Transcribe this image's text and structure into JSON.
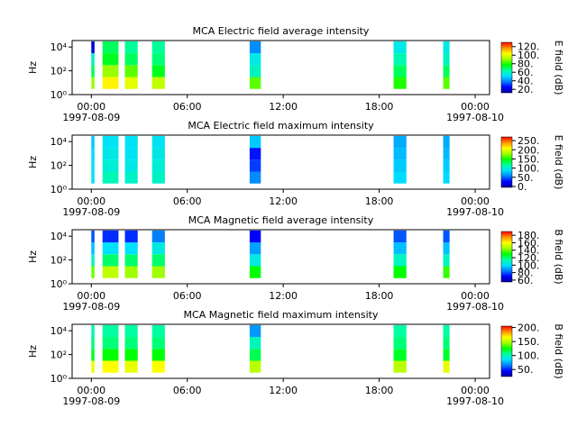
{
  "colormap": [
    "#0000a0",
    "#0000ff",
    "#0080ff",
    "#00e0ff",
    "#00ffa0",
    "#00ff00",
    "#a0ff00",
    "#ffff00",
    "#ff9000",
    "#ff0000"
  ],
  "chart_data": [
    {
      "type": "spectrogram",
      "title": "MCA  Electric field average intensity",
      "ylabel": "Hz",
      "clabel": "E field (dB)",
      "xlim": [
        -1.2,
        24.9
      ],
      "ylim": [
        1,
        35000
      ],
      "log_y": true,
      "xticks": [
        {
          "value": 0,
          "label": "00:00"
        },
        {
          "value": 6,
          "label": "06:00"
        },
        {
          "value": 12,
          "label": "12:00"
        },
        {
          "value": 18,
          "label": "18:00"
        },
        {
          "value": 24,
          "label": "00:00"
        }
      ],
      "date_labels": [
        {
          "value": 0,
          "label": "1997-08-09"
        },
        {
          "value": 24,
          "label": "1997-08-10"
        }
      ],
      "yticks": [
        {
          "value": 1,
          "label": "10⁰"
        },
        {
          "value": 100,
          "label": "10²"
        },
        {
          "value": 10000,
          "label": "10⁴"
        }
      ],
      "clim": [
        12,
        130
      ],
      "cticks": [
        {
          "value": 20,
          "label": "20."
        },
        {
          "value": 40,
          "label": "40."
        },
        {
          "value": 60,
          "label": "60."
        },
        {
          "value": 80,
          "label": "80."
        },
        {
          "value": 100,
          "label": "100."
        },
        {
          "value": 120,
          "label": "120."
        }
      ],
      "bands": [
        [
          3,
          30
        ],
        [
          30,
          300
        ],
        [
          300,
          3000
        ],
        [
          3000,
          30000
        ]
      ],
      "segments": [
        {
          "start": 0,
          "end": 0.2,
          "values": [
            90,
            70,
            60,
            20
          ]
        },
        {
          "start": 0.7,
          "end": 1.7,
          "values": [
            105,
            90,
            75,
            70
          ]
        },
        {
          "start": 2.1,
          "end": 2.9,
          "values": [
            100,
            85,
            70,
            65
          ]
        },
        {
          "start": 3.8,
          "end": 4.6,
          "values": [
            95,
            75,
            68,
            65
          ]
        },
        {
          "start": 9.9,
          "end": 10.6,
          "values": [
            85,
            60,
            55,
            40
          ]
        },
        {
          "start": 18.9,
          "end": 19.7,
          "values": [
            80,
            70,
            62,
            55
          ]
        },
        {
          "start": 22.0,
          "end": 22.4,
          "values": [
            85,
            70,
            60,
            55
          ]
        }
      ]
    },
    {
      "type": "spectrogram",
      "title": "MCA  Electric field maximum intensity",
      "ylabel": "Hz",
      "clabel": "E field (dB)",
      "xlim": [
        -1.2,
        24.9
      ],
      "ylim": [
        1,
        35000
      ],
      "log_y": true,
      "xticks": [
        {
          "value": 0,
          "label": "00:00"
        },
        {
          "value": 6,
          "label": "06:00"
        },
        {
          "value": 12,
          "label": "12:00"
        },
        {
          "value": 18,
          "label": "18:00"
        },
        {
          "value": 24,
          "label": "00:00"
        }
      ],
      "date_labels": [
        {
          "value": 0,
          "label": "1997-08-09"
        },
        {
          "value": 24,
          "label": "1997-08-10"
        }
      ],
      "yticks": [
        {
          "value": 1,
          "label": "10⁰"
        },
        {
          "value": 100,
          "label": "10²"
        },
        {
          "value": 10000,
          "label": "10⁴"
        }
      ],
      "clim": [
        -5,
        270
      ],
      "cticks": [
        {
          "value": 0,
          "label": "0."
        },
        {
          "value": 50,
          "label": "50."
        },
        {
          "value": 100,
          "label": "100."
        },
        {
          "value": 150,
          "label": "150."
        },
        {
          "value": 200,
          "label": "200."
        },
        {
          "value": 250,
          "label": "250."
        }
      ],
      "bands": [
        [
          3,
          30
        ],
        [
          30,
          300
        ],
        [
          300,
          3000
        ],
        [
          3000,
          30000
        ]
      ],
      "segments": [
        {
          "start": 0,
          "end": 0.2,
          "values": [
            90,
            90,
            85,
            80
          ]
        },
        {
          "start": 0.7,
          "end": 1.7,
          "values": [
            110,
            100,
            95,
            90
          ]
        },
        {
          "start": 2.1,
          "end": 2.9,
          "values": [
            105,
            95,
            90,
            90
          ]
        },
        {
          "start": 3.8,
          "end": 4.6,
          "values": [
            105,
            100,
            95,
            90
          ]
        },
        {
          "start": 9.9,
          "end": 10.6,
          "values": [
            60,
            40,
            30,
            80
          ]
        },
        {
          "start": 18.9,
          "end": 19.7,
          "values": [
            85,
            80,
            75,
            70
          ]
        },
        {
          "start": 22.0,
          "end": 22.4,
          "values": [
            85,
            80,
            75,
            70
          ]
        }
      ]
    },
    {
      "type": "spectrogram",
      "title": "MCA  Magnetic field average intensity",
      "ylabel": "Hz",
      "clabel": "B field (dB)",
      "xlim": [
        -1.2,
        24.9
      ],
      "ylim": [
        1,
        35000
      ],
      "log_y": true,
      "xticks": [
        {
          "value": 0,
          "label": "00:00"
        },
        {
          "value": 6,
          "label": "06:00"
        },
        {
          "value": 12,
          "label": "12:00"
        },
        {
          "value": 18,
          "label": "18:00"
        },
        {
          "value": 24,
          "label": "00:00"
        }
      ],
      "date_labels": [
        {
          "value": 0,
          "label": "1997-08-09"
        },
        {
          "value": 24,
          "label": "1997-08-10"
        }
      ],
      "yticks": [
        {
          "value": 1,
          "label": "10⁰"
        },
        {
          "value": 100,
          "label": "10²"
        },
        {
          "value": 10000,
          "label": "10⁴"
        }
      ],
      "clim": [
        55,
        190
      ],
      "cticks": [
        {
          "value": 60,
          "label": "60."
        },
        {
          "value": 80,
          "label": "80."
        },
        {
          "value": 100,
          "label": "100."
        },
        {
          "value": 120,
          "label": "120."
        },
        {
          "value": 140,
          "label": "140."
        },
        {
          "value": 160,
          "label": "160."
        },
        {
          "value": 180,
          "label": "180."
        }
      ],
      "bands": [
        [
          3,
          30
        ],
        [
          30,
          300
        ],
        [
          300,
          3000
        ],
        [
          3000,
          30000
        ]
      ],
      "segments": [
        {
          "start": 0,
          "end": 0.2,
          "values": [
            140,
            110,
            95,
            80
          ]
        },
        {
          "start": 0.7,
          "end": 1.7,
          "values": [
            150,
            120,
            100,
            75
          ]
        },
        {
          "start": 2.1,
          "end": 2.9,
          "values": [
            145,
            120,
            100,
            75
          ]
        },
        {
          "start": 3.8,
          "end": 4.6,
          "values": [
            145,
            120,
            105,
            85
          ]
        },
        {
          "start": 9.9,
          "end": 10.6,
          "values": [
            130,
            105,
            90,
            70
          ]
        },
        {
          "start": 18.9,
          "end": 19.7,
          "values": [
            130,
            110,
            95,
            80
          ]
        },
        {
          "start": 22.0,
          "end": 22.4,
          "values": [
            135,
            110,
            95,
            80
          ]
        }
      ]
    },
    {
      "type": "spectrogram",
      "title": "MCA  Magnetic field maximum intensity",
      "ylabel": "Hz",
      "clabel": "B field (dB)",
      "xlim": [
        -1.2,
        24.9
      ],
      "ylim": [
        1,
        35000
      ],
      "log_y": true,
      "xticks": [
        {
          "value": 0,
          "label": "00:00"
        },
        {
          "value": 6,
          "label": "06:00"
        },
        {
          "value": 12,
          "label": "12:00"
        },
        {
          "value": 18,
          "label": "18:00"
        },
        {
          "value": 24,
          "label": "00:00"
        }
      ],
      "date_labels": [
        {
          "value": 0,
          "label": "1997-08-09"
        },
        {
          "value": 24,
          "label": "1997-08-10"
        }
      ],
      "yticks": [
        {
          "value": 1,
          "label": "10⁰"
        },
        {
          "value": 100,
          "label": "10²"
        },
        {
          "value": 10000,
          "label": "10⁴"
        }
      ],
      "clim": [
        25,
        205
      ],
      "cticks": [
        {
          "value": 50,
          "label": "50."
        },
        {
          "value": 100,
          "label": "100."
        },
        {
          "value": 150,
          "label": "150."
        },
        {
          "value": 200,
          "label": "200."
        }
      ],
      "bands": [
        [
          3,
          30
        ],
        [
          30,
          300
        ],
        [
          300,
          3000
        ],
        [
          3000,
          30000
        ]
      ],
      "segments": [
        {
          "start": 0,
          "end": 0.2,
          "values": [
            160,
            120,
            110,
            100
          ]
        },
        {
          "start": 0.7,
          "end": 1.7,
          "values": [
            165,
            125,
            110,
            105
          ]
        },
        {
          "start": 2.1,
          "end": 2.9,
          "values": [
            160,
            125,
            110,
            105
          ]
        },
        {
          "start": 3.8,
          "end": 4.6,
          "values": [
            165,
            125,
            110,
            105
          ]
        },
        {
          "start": 9.9,
          "end": 10.6,
          "values": [
            150,
            115,
            100,
            70
          ]
        },
        {
          "start": 18.9,
          "end": 19.7,
          "values": [
            150,
            120,
            110,
            105
          ]
        },
        {
          "start": 22.0,
          "end": 22.4,
          "values": [
            160,
            120,
            110,
            105
          ]
        }
      ]
    }
  ]
}
